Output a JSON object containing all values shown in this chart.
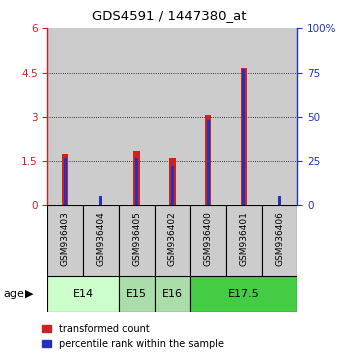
{
  "title": "GDS4591 / 1447380_at",
  "samples": [
    "GSM936403",
    "GSM936404",
    "GSM936405",
    "GSM936402",
    "GSM936400",
    "GSM936401",
    "GSM936406"
  ],
  "transformed_count": [
    1.75,
    0.0,
    1.85,
    1.6,
    3.05,
    4.65,
    0.0
  ],
  "percentile_rank_raw": [
    27,
    5,
    27,
    22,
    48,
    77,
    5
  ],
  "age_groups": [
    {
      "label": "E14",
      "start": 0,
      "end": 1,
      "color": "#ccffcc"
    },
    {
      "label": "E15",
      "start": 2,
      "end": 2,
      "color": "#aaddaa"
    },
    {
      "label": "E16",
      "start": 3,
      "end": 3,
      "color": "#aaddaa"
    },
    {
      "label": "E17.5",
      "start": 4,
      "end": 6,
      "color": "#44cc44"
    }
  ],
  "ylim_left": [
    0,
    6
  ],
  "ylim_right": [
    0,
    100
  ],
  "yticks_left": [
    0,
    1.5,
    3,
    4.5,
    6
  ],
  "yticks_right": [
    0,
    25,
    50,
    75,
    100
  ],
  "red_color": "#cc2222",
  "blue_color": "#2233bb",
  "bg_color": "#cccccc",
  "legend_red": "transformed count",
  "legend_blue": "percentile rank within the sample"
}
